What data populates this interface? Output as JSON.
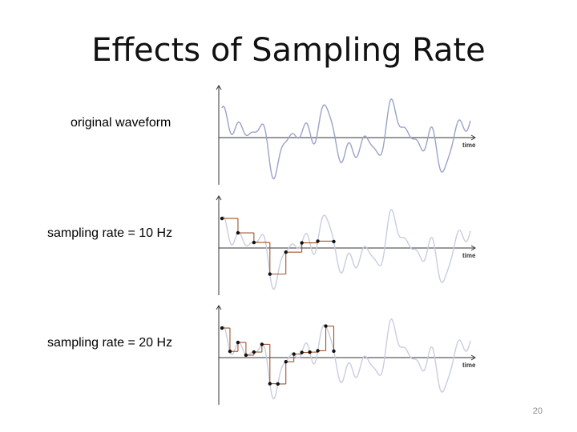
{
  "slide": {
    "title": "Effects of Sampling Rate",
    "page_number": "20"
  },
  "rows": [
    {
      "label": "original waveform",
      "axis_label": "time",
      "sample_rate_hz": null
    },
    {
      "label": "sampling rate = 10 Hz",
      "axis_label": "time",
      "sample_rate_hz": 10
    },
    {
      "label": "sampling rate = 20 Hz",
      "axis_label": "time",
      "sample_rate_hz": 20
    }
  ],
  "colors": {
    "waveform": "#9aa3c4",
    "faded_waveform": "#c8cde0",
    "sample_steps": "#a0522d",
    "sample_points": "#111111",
    "axes": "#333333"
  }
}
